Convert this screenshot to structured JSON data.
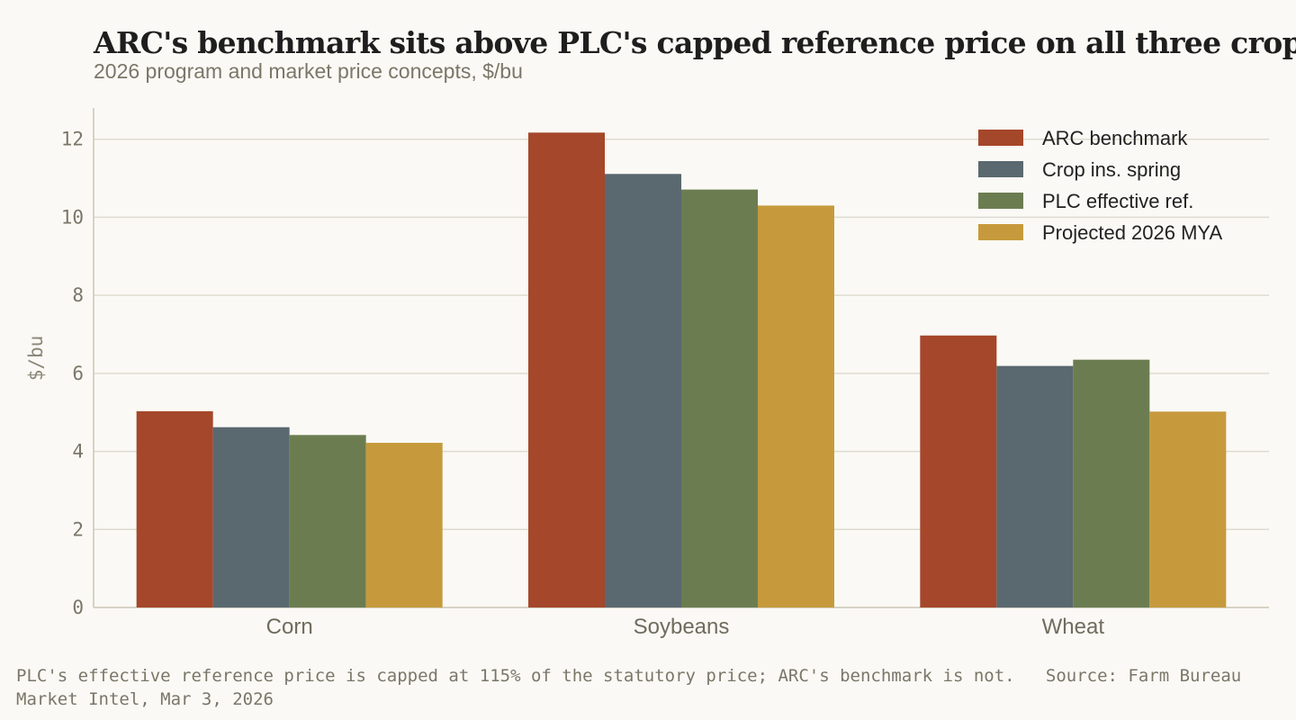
{
  "chart_data": {
    "type": "bar",
    "title": "ARC's benchmark sits above PLC's capped reference price on all three crops",
    "subtitle": "2026 program and market price concepts, $/bu",
    "xlabel": "",
    "ylabel": "$/bu",
    "ylim": [
      0,
      12.8
    ],
    "yticks": [
      0,
      2,
      4,
      6,
      8,
      10,
      12
    ],
    "grid": true,
    "legend_position": "top-right",
    "categories": [
      "Corn",
      "Soybeans",
      "Wheat"
    ],
    "series": [
      {
        "name": "ARC benchmark",
        "color": "#a5472a",
        "values": [
          5.03,
          12.17,
          6.97
        ]
      },
      {
        "name": "Crop ins. spring",
        "color": "#5a6870",
        "values": [
          4.62,
          11.11,
          6.19
        ]
      },
      {
        "name": "PLC effective ref.",
        "color": "#6b7d50",
        "values": [
          4.42,
          10.71,
          6.35
        ]
      },
      {
        "name": "Projected 2026 MYA",
        "color": "#c69a3c",
        "values": [
          4.22,
          10.3,
          5.02
        ]
      }
    ]
  },
  "footnote": "PLC's effective reference price is capped at 115% of the statutory price; ARC's benchmark is not.   Source: Farm Bureau Market Intel, Mar 3, 2026"
}
